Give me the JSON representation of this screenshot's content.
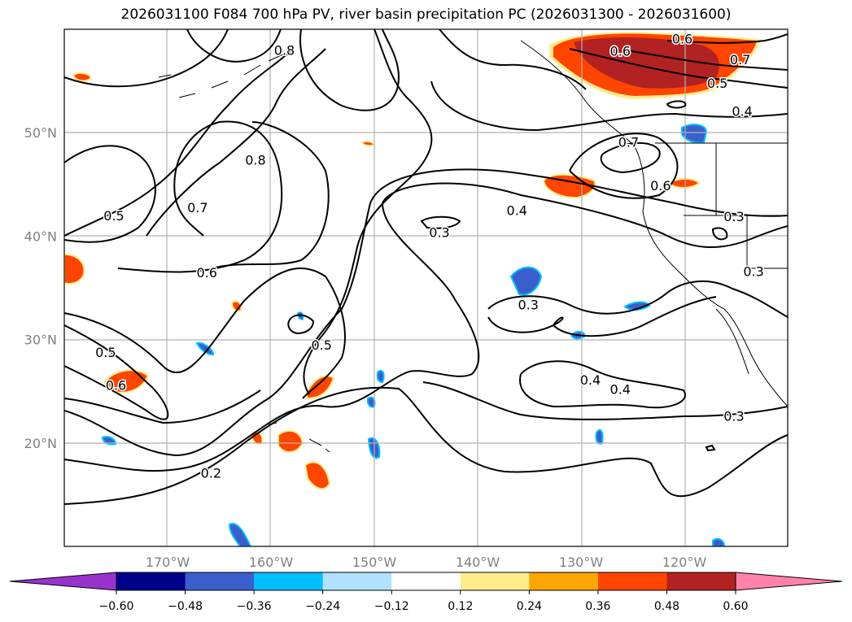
{
  "title": "2026031100 F084 700 hPa PV, river basin precipitation PC (2026031300 - 2026031600)",
  "chart_data": {
    "type": "contour-map",
    "extent": {
      "lon": [
        -180,
        -110
      ],
      "lat": [
        10,
        60
      ]
    },
    "x_ticks": [
      {
        "lon": -170,
        "label": "170°W"
      },
      {
        "lon": -160,
        "label": "160°W"
      },
      {
        "lon": -150,
        "label": "150°W"
      },
      {
        "lon": -140,
        "label": "140°W"
      },
      {
        "lon": -130,
        "label": "130°W"
      },
      {
        "lon": -120,
        "label": "120°W"
      }
    ],
    "y_ticks": [
      {
        "lat": 50,
        "label": "50°N"
      },
      {
        "lat": 40,
        "label": "40°N"
      },
      {
        "lat": 30,
        "label": "30°N"
      },
      {
        "lat": 20,
        "label": "20°N"
      }
    ],
    "grid": true,
    "contour_labels": [
      {
        "text": "0.6",
        "lon": -120.2,
        "lat": 59.1
      },
      {
        "text": "0.6",
        "lon": -126.2,
        "lat": 57.9
      },
      {
        "text": "0.7",
        "lon": -114.6,
        "lat": 57.1
      },
      {
        "text": "0.5",
        "lon": -116.8,
        "lat": 54.8
      },
      {
        "text": "0.4",
        "lon": -114.4,
        "lat": 52.1
      },
      {
        "text": "0.8",
        "lon": -158.7,
        "lat": 58.0
      },
      {
        "text": "0.8",
        "lon": -161.5,
        "lat": 47.4
      },
      {
        "text": "0.7",
        "lon": -167.1,
        "lat": 42.8
      },
      {
        "text": "0.5",
        "lon": -175.2,
        "lat": 42.0
      },
      {
        "text": "0.6",
        "lon": -166.2,
        "lat": 36.5
      },
      {
        "text": "0.4",
        "lon": -136.2,
        "lat": 42.5
      },
      {
        "text": "0.3",
        "lon": -143.7,
        "lat": 40.4
      },
      {
        "text": "0.3",
        "lon": -115.2,
        "lat": 41.9
      },
      {
        "text": "0.3",
        "lon": -113.3,
        "lat": 36.6
      },
      {
        "text": "0.6",
        "lon": -122.3,
        "lat": 44.9
      },
      {
        "text": "0.7",
        "lon": -125.4,
        "lat": 49.1
      },
      {
        "text": "0.3",
        "lon": -135.1,
        "lat": 33.4
      },
      {
        "text": "0.5",
        "lon": -155.1,
        "lat": 29.5
      },
      {
        "text": "0.5",
        "lon": -176.0,
        "lat": 28.8
      },
      {
        "text": "0.6",
        "lon": -175.0,
        "lat": 25.6
      },
      {
        "text": "0.4",
        "lon": -129.1,
        "lat": 26.1
      },
      {
        "text": "0.4",
        "lon": -126.2,
        "lat": 25.2
      },
      {
        "text": "0.3",
        "lon": -115.2,
        "lat": 22.6
      },
      {
        "text": "0.2",
        "lon": -165.8,
        "lat": 17.1
      }
    ],
    "colorbar": {
      "colors": [
        "#9932cc",
        "#00008b",
        "#3a5fcd",
        "#00bfff",
        "#b0e2ff",
        "#ffffff",
        "#ffec8b",
        "#ffa500",
        "#ff4500",
        "#b22222",
        "#ff83a8"
      ],
      "boundaries": [
        "-0.60",
        "-0.48",
        "-0.36",
        "-0.24",
        "-0.12",
        "0.12",
        "0.24",
        "0.36",
        "0.48",
        "0.60"
      ],
      "extend": "both"
    }
  }
}
